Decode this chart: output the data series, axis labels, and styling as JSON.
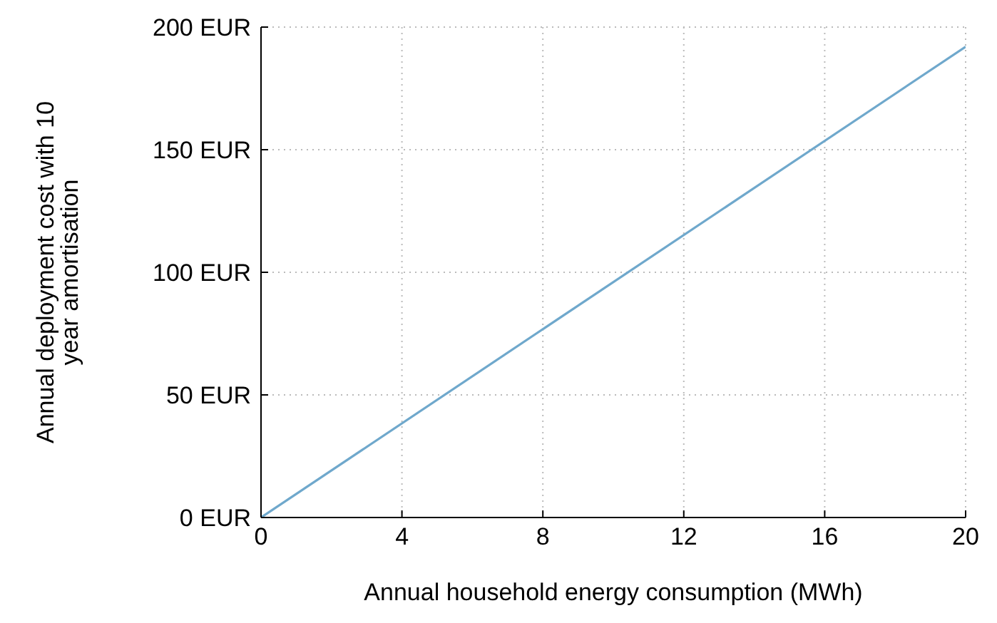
{
  "chart_data": {
    "type": "line",
    "xlabel": "Annual household energy consumption (MWh)",
    "ylabel": "Annual deployment cost with 10 year amortisation",
    "x": [
      0,
      20
    ],
    "series": [
      {
        "color": "#6fa8cc",
        "values": [
          0,
          192
        ]
      }
    ],
    "xlim": [
      0,
      20
    ],
    "xticks": [
      0,
      4,
      8,
      12,
      16,
      20
    ],
    "ylim": [
      0,
      200
    ],
    "yticks": [
      {
        "value": 0,
        "label": "0 EUR"
      },
      {
        "value": 50,
        "label": "50 EUR"
      },
      {
        "value": 100,
        "label": "100 EUR"
      },
      {
        "value": 150,
        "label": "150 EUR"
      },
      {
        "value": 200,
        "label": "200 EUR"
      }
    ],
    "grid": true,
    "line_style": "solid",
    "marker": "none"
  }
}
